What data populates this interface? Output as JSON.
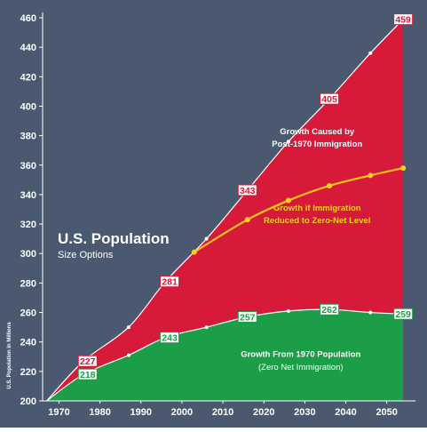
{
  "chart_data": {
    "type": "area",
    "title": "U.S. Population",
    "subtitle": "Size Options",
    "ylabel": "U.S. Population in Millions",
    "xlabel": "",
    "xlim": [
      1966,
      2057
    ],
    "ylim": [
      200,
      460
    ],
    "x_ticks": [
      1970,
      1980,
      1990,
      2000,
      2010,
      2020,
      2030,
      2040,
      2050
    ],
    "y_ticks": [
      200,
      220,
      240,
      260,
      280,
      300,
      320,
      340,
      360,
      380,
      400,
      420,
      440,
      460
    ],
    "grid": false,
    "series": [
      {
        "name": "Growth Caused by Post-1970 Immigration",
        "color": "#d7193a",
        "x": [
          1967,
          1976,
          1987,
          1996,
          2006,
          2016,
          2026,
          2036,
          2046,
          2054
        ],
        "values": [
          200,
          227,
          250,
          281,
          310,
          343,
          376,
          405,
          436,
          459
        ]
      },
      {
        "name": "Growth if Immigration Reduced to Zero-Net Level",
        "color": "#f2c318",
        "x": [
          2003,
          2016,
          2026,
          2036,
          2046,
          2054
        ],
        "values": [
          301,
          323,
          336,
          346,
          353,
          358
        ]
      },
      {
        "name": "Growth From 1970 Population",
        "color": "#1c9d48",
        "x": [
          1967,
          1976,
          1987,
          1996,
          2006,
          2016,
          2026,
          2036,
          2046,
          2054
        ],
        "values": [
          200,
          218,
          231,
          243,
          250,
          257,
          261,
          262,
          260,
          259
        ]
      }
    ],
    "data_labels": [
      {
        "text": "227",
        "x": 1977,
        "y": 227,
        "series": "Growth Caused by Post-1970 Immigration"
      },
      {
        "text": "281",
        "x": 1997,
        "y": 281,
        "series": "Growth Caused by Post-1970 Immigration"
      },
      {
        "text": "343",
        "x": 2016,
        "y": 343,
        "series": "Growth Caused by Post-1970 Immigration"
      },
      {
        "text": "405",
        "x": 2036,
        "y": 405,
        "series": "Growth Caused by Post-1970 Immigration"
      },
      {
        "text": "459",
        "x": 2054,
        "y": 459,
        "series": "Growth Caused by Post-1970 Immigration"
      },
      {
        "text": "218",
        "x": 1977,
        "y": 218,
        "series": "Growth From 1970 Population"
      },
      {
        "text": "243",
        "x": 1997,
        "y": 243,
        "series": "Growth From 1970 Population"
      },
      {
        "text": "257",
        "x": 2016,
        "y": 257,
        "series": "Growth From 1970 Population"
      },
      {
        "text": "262",
        "x": 2036,
        "y": 262,
        "series": "Growth From 1970 Population"
      },
      {
        "text": "259",
        "x": 2054,
        "y": 259,
        "series": "Growth From 1970 Population"
      }
    ],
    "annotations": [
      {
        "lines": [
          "Growth Caused by",
          "Post-1970 Immigration"
        ],
        "x": 2033,
        "y": 381,
        "color": "#ffffff",
        "bold": true
      },
      {
        "lines": [
          "Growth if Immigration",
          "Reduced to Zero-Net Level"
        ],
        "x": 2033,
        "y": 329,
        "color": "#f7d21a",
        "bold": true
      },
      {
        "lines": [
          "Growth From 1970 Population"
        ],
        "x": 2029,
        "y": 230,
        "color": "#ffffff",
        "bold": true
      },
      {
        "lines": [
          "(Zero Net Immigration)"
        ],
        "x": 2029,
        "y": 221,
        "color": "#ffffff",
        "bold": false
      }
    ],
    "colors": {
      "background": "#4a5870",
      "immigration_area": "#d7193a",
      "base_area": "#1c9d48",
      "zero_net_line": "#f2c318",
      "axis_text": "#ffffff"
    }
  }
}
